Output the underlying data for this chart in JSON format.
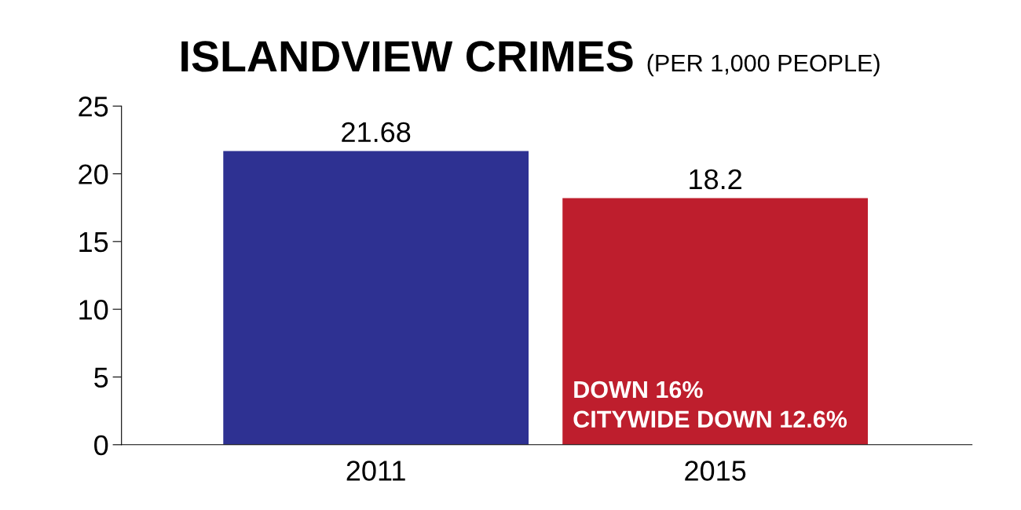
{
  "chart_data": {
    "type": "bar",
    "title": "ISLANDVIEW CRIMES",
    "subtitle": "(PER 1,000 PEOPLE)",
    "categories": [
      "2011",
      "2015"
    ],
    "values": [
      21.68,
      18.2
    ],
    "colors": [
      "#2e3192",
      "#be1e2d"
    ],
    "data_labels": true,
    "ylim": [
      0,
      25
    ],
    "yticks": [
      0,
      5,
      10,
      15,
      20,
      25
    ],
    "grid": false,
    "legend": false,
    "annotations": [
      "DOWN 16%",
      "CITYWIDE DOWN 12.6%"
    ]
  }
}
